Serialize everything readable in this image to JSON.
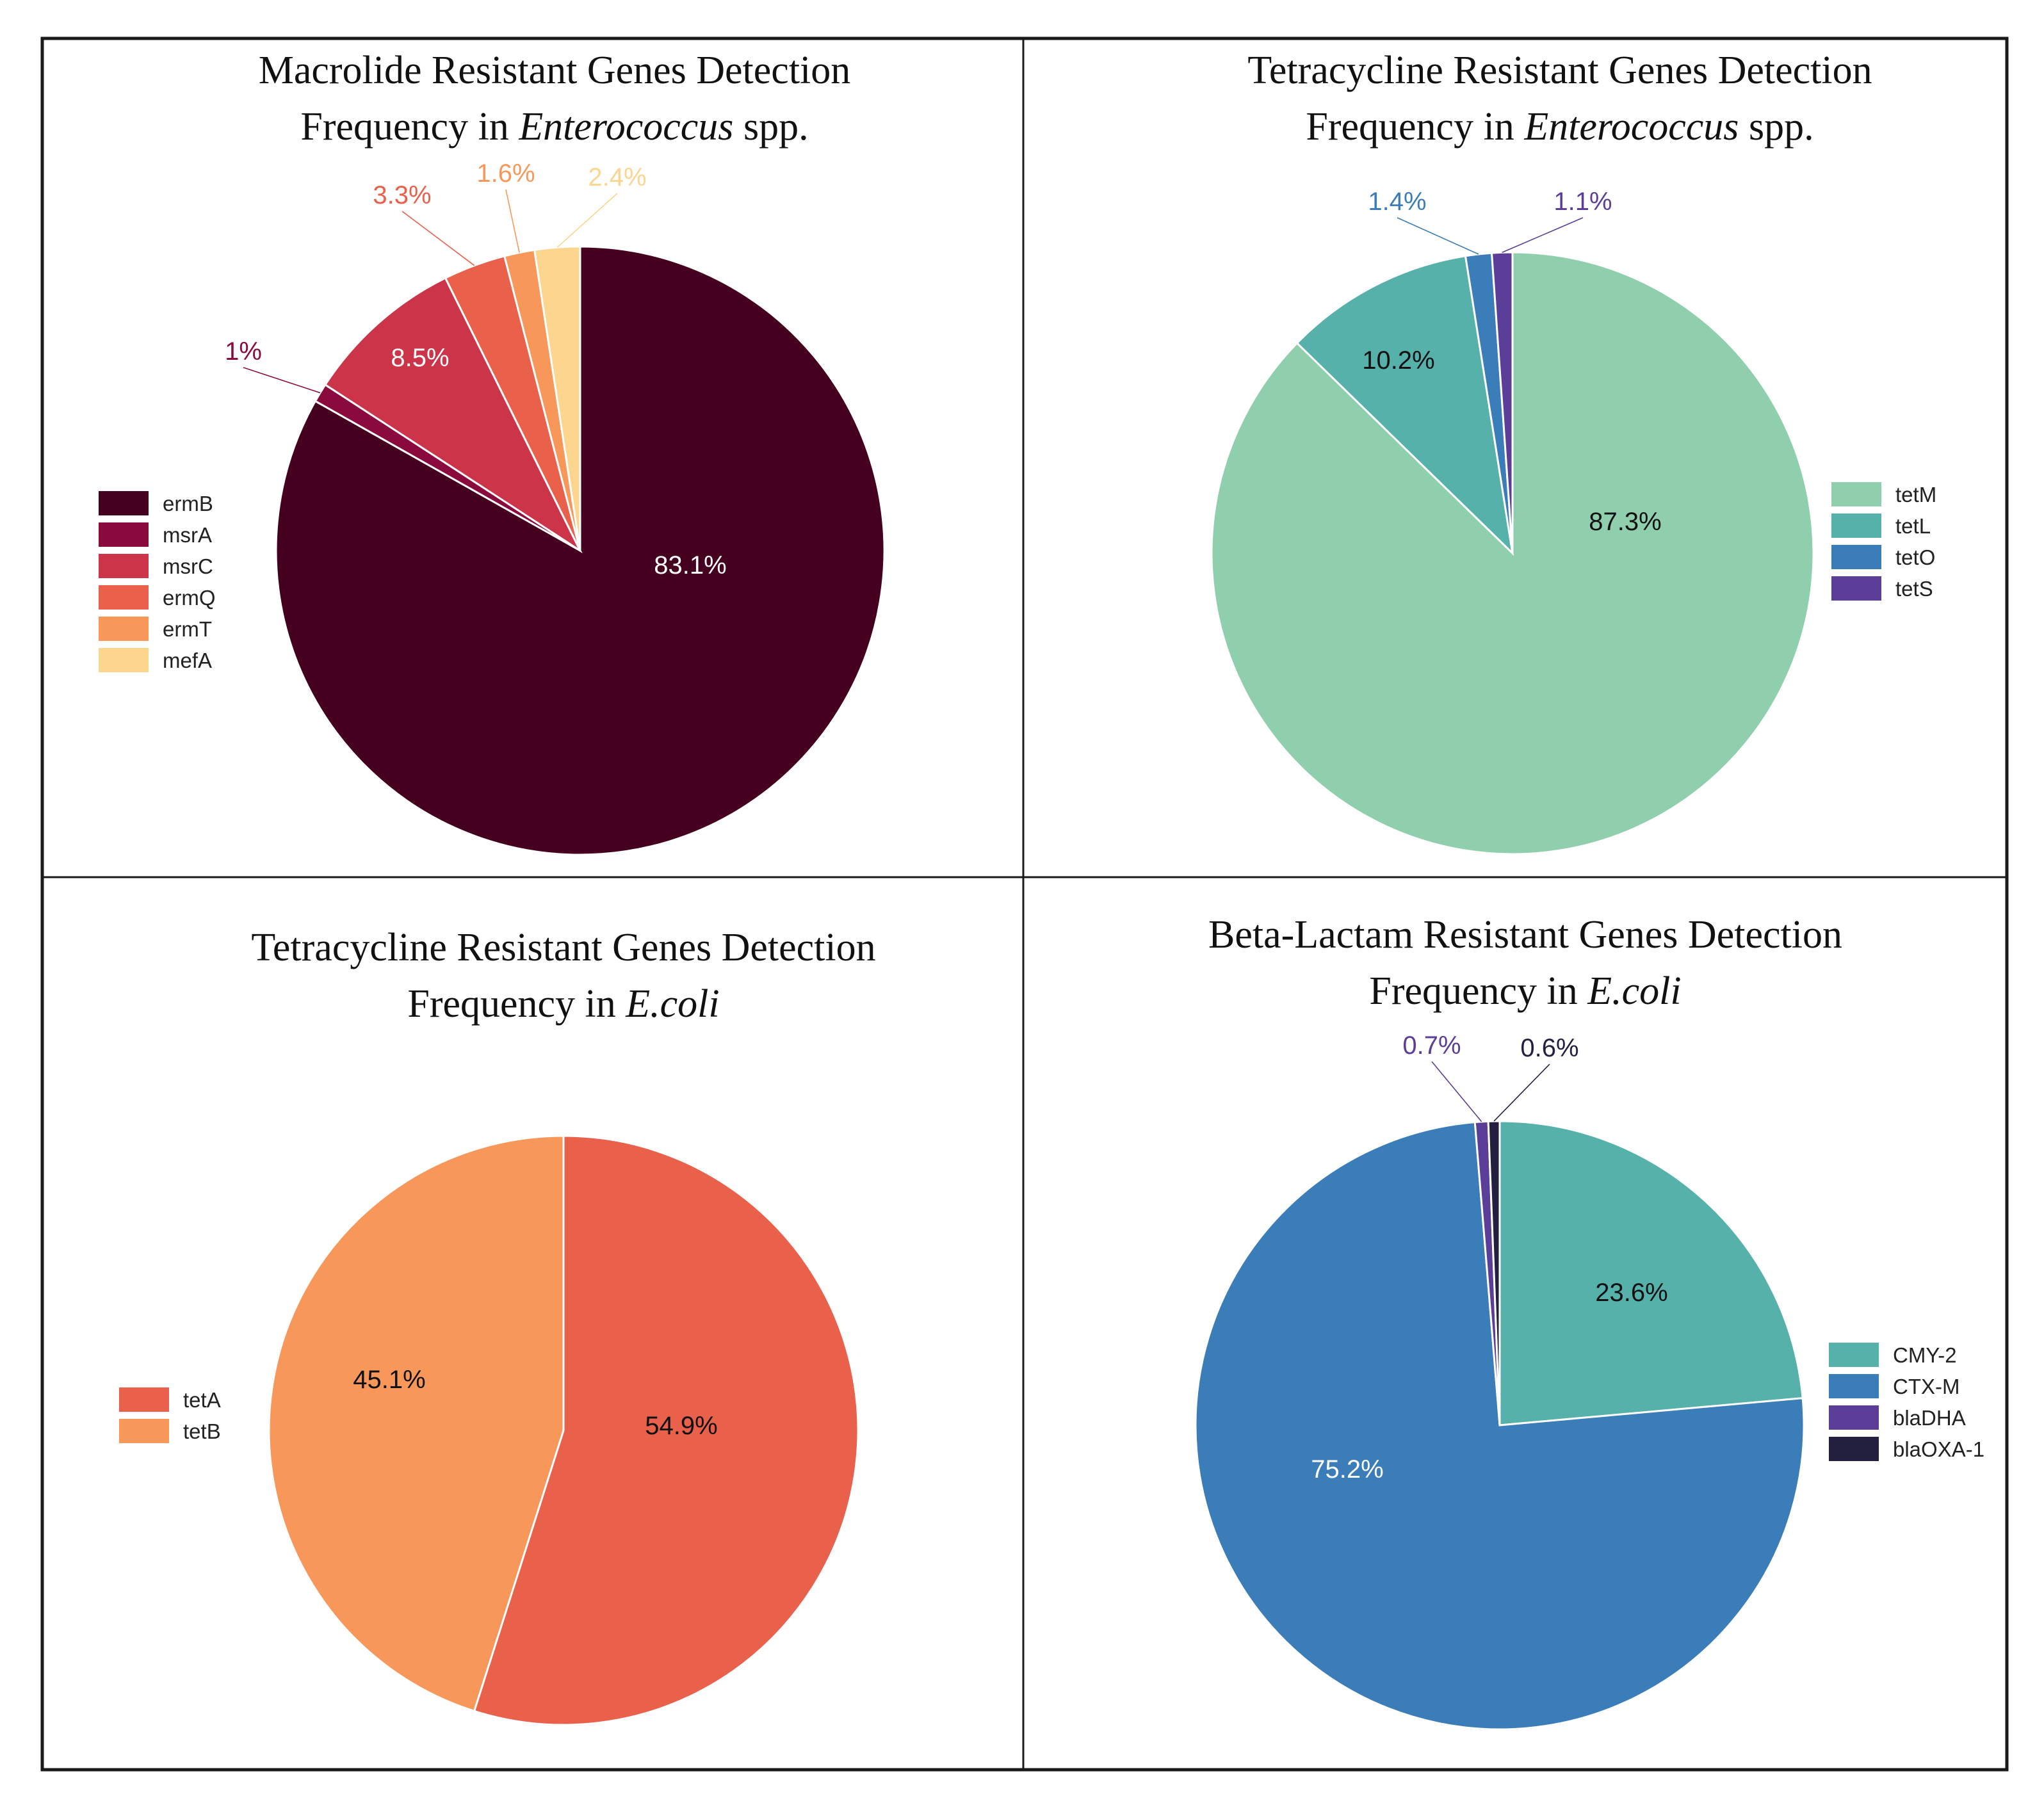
{
  "chart_data": [
    {
      "type": "pie",
      "title_line1": "Macrolide Resistant Genes Detection",
      "title_line2_prefix": "Frequency in ",
      "title_line2_italic": "Enterococcus",
      "title_line2_suffix": " spp.",
      "legend_position": "left",
      "slices": [
        {
          "label": "ermB",
          "value": 83.1,
          "text": "83.1%",
          "color": "#44001e",
          "label_color": "#ffffff",
          "label_mode": "inside"
        },
        {
          "label": "msrA",
          "value": 1.0,
          "text": "1%",
          "color": "#8b0a3e",
          "label_color": "#8b0a3e",
          "label_mode": "outside"
        },
        {
          "label": "msrC",
          "value": 8.5,
          "text": "8.5%",
          "color": "#cc3449",
          "label_color": "#ffffff",
          "label_mode": "inside"
        },
        {
          "label": "ermQ",
          "value": 3.3,
          "text": "3.3%",
          "color": "#e9604b",
          "label_color": "#e9604b",
          "label_mode": "outside"
        },
        {
          "label": "ermT",
          "value": 1.6,
          "text": "1.6%",
          "color": "#f7985a",
          "label_color": "#f7985a",
          "label_mode": "outside"
        },
        {
          "label": "mefA",
          "value": 2.4,
          "text": "2.4%",
          "color": "#fcd58e",
          "label_color": "#fcd58e",
          "label_mode": "outside"
        }
      ]
    },
    {
      "type": "pie",
      "title_line1": "Tetracycline Resistant Genes Detection",
      "title_line2_prefix": "Frequency in ",
      "title_line2_italic": "Enterococcus",
      "title_line2_suffix": " spp.",
      "legend_position": "right",
      "slices": [
        {
          "label": "tetM",
          "value": 87.3,
          "text": "87.3%",
          "color": "#8fcfae",
          "label_color": "#111111",
          "label_mode": "inside"
        },
        {
          "label": "tetL",
          "value": 10.2,
          "text": "10.2%",
          "color": "#56b1aa",
          "label_color": "#111111",
          "label_mode": "inside"
        },
        {
          "label": "tetO",
          "value": 1.4,
          "text": "1.4%",
          "color": "#3a7db8",
          "label_color": "#3a7db8",
          "label_mode": "outside"
        },
        {
          "label": "tetS",
          "value": 1.1,
          "text": "1.1%",
          "color": "#5b3e97",
          "label_color": "#5b3e97",
          "label_mode": "outside"
        }
      ]
    },
    {
      "type": "pie",
      "title_line1": "Tetracycline Resistant Genes Detection",
      "title_line2_prefix": "Frequency in ",
      "title_line2_italic": "E.coli",
      "title_line2_suffix": "",
      "legend_position": "left",
      "slices": [
        {
          "label": "tetA",
          "value": 54.9,
          "text": "54.9%",
          "color": "#e9604b",
          "label_color": "#111111",
          "label_mode": "inside"
        },
        {
          "label": "tetB",
          "value": 45.1,
          "text": "45.1%",
          "color": "#f7985a",
          "label_color": "#111111",
          "label_mode": "inside"
        }
      ]
    },
    {
      "type": "pie",
      "title_line1": "Beta-Lactam Resistant Genes Detection",
      "title_line2_prefix": "Frequency in ",
      "title_line2_italic": "E.coli",
      "title_line2_suffix": "",
      "legend_position": "right",
      "slices": [
        {
          "label": "CMY-2",
          "value": 23.6,
          "text": "23.6%",
          "color": "#56b1aa",
          "label_color": "#111111",
          "label_mode": "inside"
        },
        {
          "label": "CTX-M",
          "value": 75.2,
          "text": "75.2%",
          "color": "#3a7db8",
          "label_color": "#ffffff",
          "label_mode": "inside"
        },
        {
          "label": "blaDHA",
          "value": 0.7,
          "text": "0.7%",
          "color": "#5b3e97",
          "label_color": "#5b3e97",
          "label_mode": "outside"
        },
        {
          "label": "blaOXA-1",
          "value": 0.6,
          "text": "0.6%",
          "color": "#23203f",
          "label_color": "#23203f",
          "label_mode": "outside"
        }
      ]
    }
  ]
}
